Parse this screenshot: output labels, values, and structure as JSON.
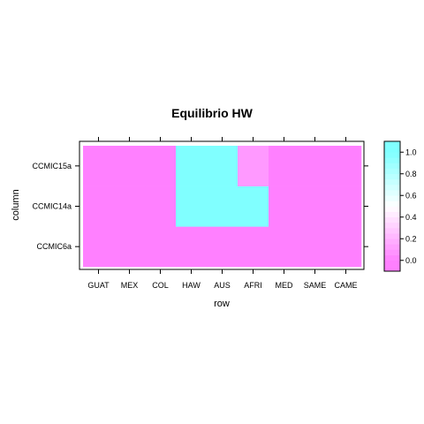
{
  "chart_data": {
    "type": "heatmap",
    "title": "Equilibrio HW",
    "xlabel": "row",
    "ylabel": "column",
    "x_categories": [
      "GUAT",
      "MEX",
      "COL",
      "HAW",
      "AUS",
      "AFRI",
      "MED",
      "SAME",
      "CAME"
    ],
    "y_categories": [
      "CCMIC6a",
      "CCMIC14a",
      "CCMIC15a"
    ],
    "values": [
      [
        0,
        0,
        0,
        0,
        0,
        0,
        0,
        0,
        0
      ],
      [
        0,
        0,
        0,
        1,
        1,
        1,
        0,
        0,
        0
      ],
      [
        0,
        0,
        0,
        1,
        1,
        0.1,
        0,
        0,
        0
      ]
    ],
    "colorbar": {
      "ticks": [
        0.0,
        0.2,
        0.4,
        0.6,
        0.8,
        1.0
      ],
      "tick_labels": [
        "0.0",
        "0.2",
        "0.4",
        "0.6",
        "0.8",
        "1.0"
      ],
      "range": [
        -0.1,
        1.1
      ],
      "low_color": "#ff80ff",
      "high_color": "#80ffff"
    }
  }
}
